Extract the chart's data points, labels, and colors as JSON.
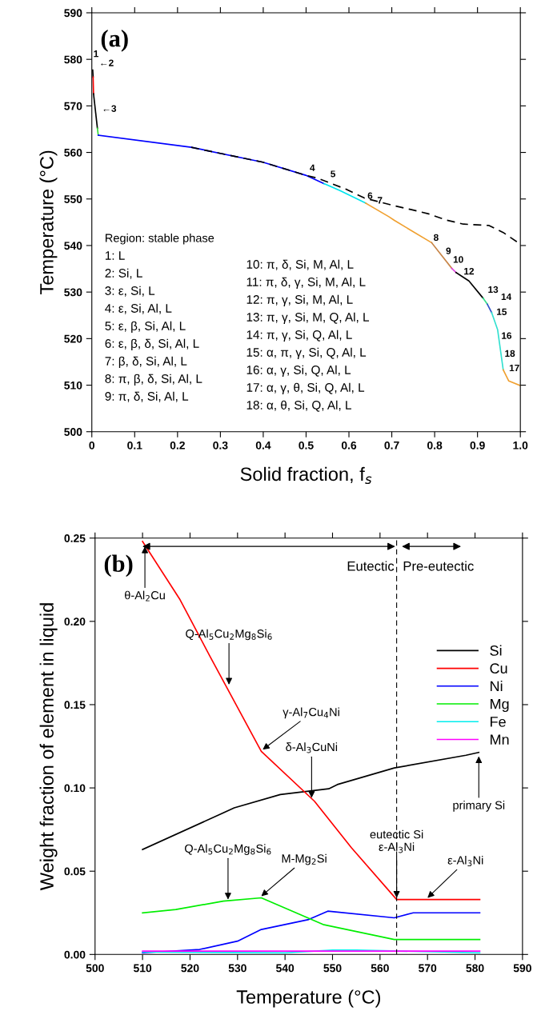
{
  "chart_data": [
    {
      "type": "line",
      "xlabel": "Solid fraction, f$_{s}$",
      "ylabel": "Temperature (°C)",
      "xlim": [
        0,
        1.0
      ],
      "ylim": [
        500,
        590
      ],
      "xticks": [
        0,
        0.1,
        0.2,
        0.3,
        0.4,
        0.5,
        0.6,
        0.7,
        0.8,
        0.9,
        {
          "value": 1.0,
          "label": "1.0"
        }
      ],
      "yticks": [
        500,
        510,
        520,
        530,
        540,
        550,
        560,
        570,
        580,
        590
      ],
      "series": [
        {
          "color": "#000000",
          "x": [
            0.002,
            0.003
          ],
          "values": [
            577.7,
            576.2
          ]
        },
        {
          "color": "#ff0000",
          "x": [
            0.003,
            0.004
          ],
          "values": [
            576.2,
            572.6
          ]
        },
        {
          "color": "#000000",
          "x": [
            0.004,
            0.013
          ],
          "values": [
            572.6,
            565.2
          ]
        },
        {
          "color": "#33dd33",
          "x": [
            0.013,
            0.015
          ],
          "values": [
            565.2,
            563.7
          ]
        },
        {
          "color": "#0000ff",
          "x": [
            0.015,
            0.232,
            0.399,
            0.499,
            0.542
          ],
          "values": [
            563.7,
            561.1,
            557.9,
            555.1,
            553.3
          ]
        },
        {
          "color": "#00e5ee",
          "x": [
            0.542,
            0.579,
            0.639
          ],
          "values": [
            553.3,
            551.8,
            549.1
          ]
        },
        {
          "color": "#f0a030",
          "x": [
            0.639,
            0.693,
            0.706,
            0.793
          ],
          "values": [
            549.1,
            546.2,
            545.4,
            540.6
          ]
        },
        {
          "color": "#c8864a",
          "x": [
            0.793,
            0.84
          ],
          "values": [
            540.6,
            535.1
          ]
        },
        {
          "color": "#dd44dd",
          "x": [
            0.84,
            0.85
          ],
          "values": [
            535.1,
            534.2
          ]
        },
        {
          "color": "#000000",
          "x": [
            0.85,
            0.88,
            0.913
          ],
          "values": [
            534.2,
            532.4,
            528.7
          ]
        },
        {
          "color": "#33dd88",
          "x": [
            0.913,
            0.923
          ],
          "values": [
            528.7,
            527.4
          ]
        },
        {
          "color": "#3355cc",
          "x": [
            0.923,
            0.933
          ],
          "values": [
            527.4,
            525.6
          ]
        },
        {
          "color": "#33e0d0",
          "x": [
            0.933,
            0.947,
            0.96
          ],
          "values": [
            525.6,
            521.9,
            513.3
          ]
        },
        {
          "color": "#f0a030",
          "x": [
            0.96,
            0.973,
            1.0
          ],
          "values": [
            513.3,
            510.9,
            509.9
          ]
        },
        {
          "color": "#000000",
          "line_style": "dashed",
          "x": [
            0.232,
            0.399,
            0.499,
            0.526,
            0.596,
            0.636,
            0.699,
            0.746,
            0.786,
            0.826,
            0.867,
            0.927,
            0.96,
            1.0
          ],
          "values": [
            561.1,
            557.9,
            555.1,
            554.5,
            552.0,
            550.2,
            548.7,
            547.7,
            546.8,
            545.5,
            544.6,
            544.3,
            542.8,
            540.3
          ]
        }
      ],
      "annotations": [
        "(a)",
        "Region: stable phase",
        "1: L",
        "2: Si, L",
        "3: ε, Si, L",
        "4: ε, Si, Al, L",
        "5: ε, β, Si, Al, L",
        "6: ε, β, δ, Si, Al, L",
        "7: β, δ, Si, Al, L",
        "8: π, β, δ, Si, Al, L",
        "9: π, δ, Si, Al, L",
        "10: π, δ, Si, M, Al, L",
        "11: π, δ, γ, Si, M, Al, L",
        "12: π, γ, Si, M, Al, L",
        "13: π, γ, Si, M, Q, Al, L",
        "14: π, γ, Si, Q, Al, L",
        "15: α, π, γ, Si, Q, Al, L",
        "16: α, γ, Si, Q, Al, L",
        "17: α, γ, θ, Si, Q, Al, L",
        "18: α, θ, Si, Q, Al, L",
        {
          "text": "1",
          "x": 0.002,
          "y": 577.7
        },
        {
          "text": "←2",
          "x": 0.003,
          "y": 576.2
        },
        {
          "text": "←3",
          "x": 0.004,
          "y": 572.6
        },
        {
          "text": "4",
          "x": 0.499,
          "y": 555.1
        },
        {
          "text": "5",
          "x": 0.542,
          "y": 553.3
        },
        {
          "text": "6",
          "x": 0.639,
          "y": 549.1
        },
        {
          "text": "7",
          "x": 0.693,
          "y": 546.2
        },
        {
          "text": "8",
          "x": 0.793,
          "y": 540.6
        },
        {
          "text": "9",
          "x": 0.84,
          "y": 535.1
        },
        {
          "text": "10",
          "x": 0.85,
          "y": 534.2
        },
        {
          "text": "12",
          "x": 0.88,
          "y": 532.4
        },
        {
          "text": "13",
          "x": 0.913,
          "y": 528.7
        },
        {
          "text": "14",
          "x": 0.923,
          "y": 527.4
        },
        {
          "text": "15",
          "x": 0.933,
          "y": 525.6
        },
        {
          "text": "16",
          "x": 0.947,
          "y": 521.9
        },
        {
          "text": "18",
          "x": 0.96,
          "y": 513.3
        },
        {
          "text": "17",
          "x": 0.973,
          "y": 510.9
        }
      ]
    },
    {
      "type": "line",
      "xlabel": "Temperature (°C)",
      "ylabel": "Weight fraction of element in liquid",
      "xlim": [
        500,
        590
      ],
      "ylim": [
        0,
        0.25
      ],
      "xticks": [
        500,
        510,
        520,
        530,
        540,
        550,
        560,
        570,
        580,
        590
      ],
      "yticks": [
        {
          "value": 0,
          "label": "0.00"
        },
        0.05,
        {
          "value": 0.1,
          "label": "0.10"
        },
        0.15,
        {
          "value": 0.2,
          "label": "0.20"
        },
        0.25
      ],
      "legend": "right",
      "series": [
        {
          "name": "Si",
          "color": "#000000",
          "x": [
            510,
            529.3,
            539,
            549.2,
            551,
            563,
            578.1,
            580.8
          ],
          "values": [
            0.063,
            0.088,
            0.096,
            0.0995,
            0.102,
            0.112,
            0.1196,
            0.1213
          ]
        },
        {
          "name": "Cu",
          "color": "#ff0000",
          "x": [
            510,
            517.9,
            524.2,
            535,
            546.2,
            554,
            563.5,
            581
          ],
          "values": [
            0.248,
            0.213,
            0.179,
            0.122,
            0.092,
            0.064,
            0.033,
            0.033
          ]
        },
        {
          "name": "Ni",
          "color": "#0000ff",
          "x": [
            510,
            522,
            530,
            535,
            545,
            549,
            563,
            567,
            581
          ],
          "values": [
            0.001,
            0.003,
            0.008,
            0.015,
            0.021,
            0.026,
            0.022,
            0.025,
            0.025
          ]
        },
        {
          "name": "Mg",
          "color": "#00ee00",
          "x": [
            510,
            517,
            527,
            535,
            548,
            563,
            581
          ],
          "values": [
            0.025,
            0.027,
            0.032,
            0.034,
            0.018,
            0.009,
            0.009
          ]
        },
        {
          "name": "Fe",
          "color": "#00eeee",
          "x": [
            510,
            540,
            550,
            555,
            581
          ],
          "values": [
            0.0015,
            0.001,
            0.0026,
            0.0026,
            0.001
          ]
        },
        {
          "name": "Mn",
          "color": "#ff00ff",
          "x": [
            510,
            581
          ],
          "values": [
            0.002,
            0.002
          ]
        }
      ],
      "ref_lines": [
        {
          "axis": "x",
          "value": 563.5,
          "line_style": "dashed",
          "color": "#000000"
        }
      ],
      "annotations": [
        "(b)",
        "Eutectic",
        "Pre-eutectic",
        {
          "text": "θ-Al$_{2}$Cu",
          "x": 510.5,
          "y": 0.245
        },
        {
          "text": "Q-Al$_{5}$Cu$_{2}$Mg$_{8}$Si$_{6}$",
          "x": 528.2,
          "y": 0.162
        },
        {
          "text": "γ-Al$_{7}$Cu$_{4}$Ni",
          "x": 535.3,
          "y": 0.123
        },
        {
          "text": "δ-Al$_{3}$CuNi",
          "x": 545.6,
          "y": 0.094
        },
        {
          "text": "primary Si",
          "x": 580.8,
          "y": 0.119
        },
        {
          "text": "Q-Al$_{5}$Cu$_{2}$Mg$_{8}$Si$_{6}$",
          "x": 528,
          "y": 0.033
        },
        {
          "text": "M-Mg$_{2}$Si",
          "x": 535,
          "y": 0.035
        },
        {
          "text": "eutectic Si\nε-Al$_{3}$Ni",
          "x": 563.5,
          "y": 0.034
        },
        {
          "text": "ε-Al$_{3}$Ni",
          "x": 570,
          "y": 0.034
        }
      ]
    }
  ]
}
